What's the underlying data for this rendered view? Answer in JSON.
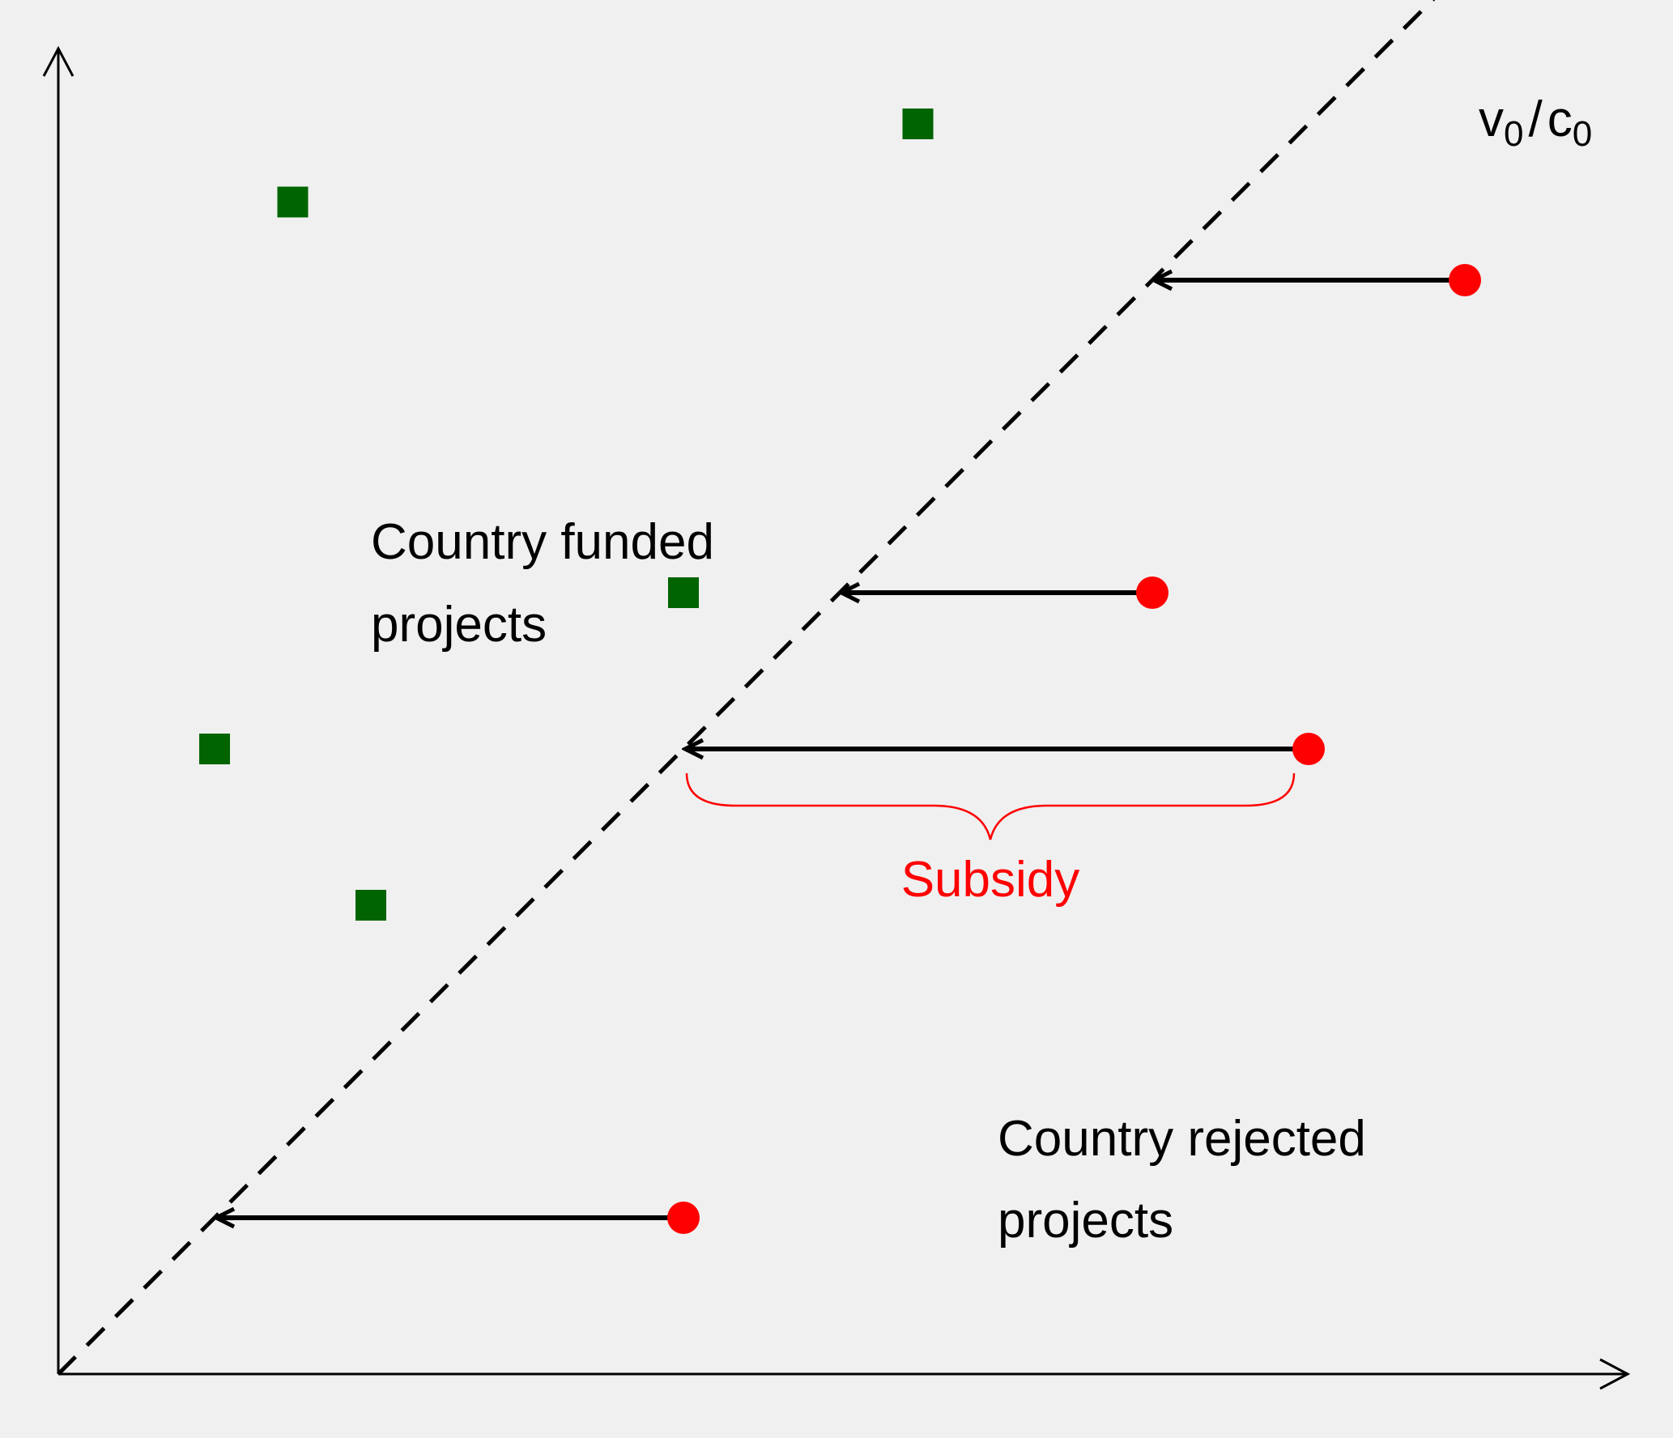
{
  "colors": {
    "background": "#f0f0f0",
    "axis": "#000000",
    "funded_marker": "#006400",
    "rejected_marker": "#ff0000",
    "subsidy": "#ff0000"
  },
  "diagonal_label": {
    "base_v": "v",
    "sub_v": "0",
    "slash": "/",
    "base_c": "c",
    "sub_c": "0"
  },
  "regions": {
    "funded_line1": "Country funded",
    "funded_line2": "projects",
    "rejected_line1": "Country rejected",
    "rejected_line2": "projects"
  },
  "subsidy_label": "Subsidy",
  "chart_data": {
    "type": "scatter",
    "xlim": [
      0,
      100
    ],
    "ylim": [
      0,
      100
    ],
    "diagonal": {
      "style": "dashed",
      "from": [
        0,
        0
      ],
      "to": [
        88,
        88
      ]
    },
    "funded_projects": [
      {
        "x": 15,
        "y": 75
      },
      {
        "x": 55,
        "y": 80
      },
      {
        "x": 40,
        "y": 50
      },
      {
        "x": 10,
        "y": 40
      },
      {
        "x": 20,
        "y": 30
      }
    ],
    "rejected_projects": [
      {
        "x": 90,
        "y": 70,
        "arrow_to_x": 70
      },
      {
        "x": 70,
        "y": 50,
        "arrow_to_x": 50
      },
      {
        "x": 80,
        "y": 40,
        "arrow_to_x": 40
      },
      {
        "x": 40,
        "y": 10,
        "arrow_to_x": 10
      }
    ],
    "subsidy_brace": {
      "y": 40,
      "x_from": 40,
      "x_to": 80
    }
  }
}
